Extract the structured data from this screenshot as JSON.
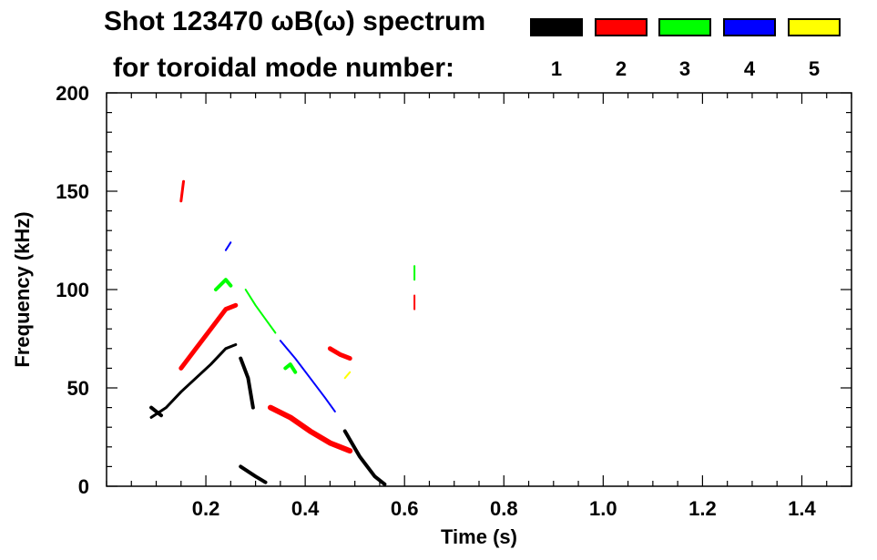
{
  "chart_data": {
    "type": "heatmap",
    "title": "Shot 123470 ωB(ω) spectrum",
    "subtitle": "for toroidal mode number:",
    "xlabel": "Time (s)",
    "ylabel": "Frequency (kHz)",
    "xlim": [
      0.0,
      1.5
    ],
    "ylim": [
      0,
      200
    ],
    "x_ticks": [
      0.2,
      0.4,
      0.6,
      0.8,
      1.0,
      1.2,
      1.4
    ],
    "x_tick_labels": [
      "0.2",
      "0.4",
      "0.6",
      "0.8",
      "1.0",
      "1.2",
      "1.4"
    ],
    "y_ticks": [
      0,
      50,
      100,
      150,
      200
    ],
    "y_tick_labels": [
      "0",
      "50",
      "100",
      "150",
      "200"
    ],
    "grid": false,
    "legend_position": "top",
    "legend": [
      {
        "label": "1",
        "color": "#000000"
      },
      {
        "label": "2",
        "color": "#ff0000"
      },
      {
        "label": "3",
        "color": "#00ff00"
      },
      {
        "label": "4",
        "color": "#0000ff"
      },
      {
        "label": "5",
        "color": "#ffff00"
      }
    ],
    "features": [
      {
        "mode": "1",
        "color": "#000000",
        "points": [
          [
            0.09,
            35
          ],
          [
            0.12,
            40
          ],
          [
            0.15,
            48
          ],
          [
            0.18,
            55
          ],
          [
            0.21,
            62
          ],
          [
            0.24,
            70
          ],
          [
            0.26,
            72
          ]
        ],
        "width": 3
      },
      {
        "mode": "1",
        "color": "#000000",
        "points": [
          [
            0.09,
            40
          ],
          [
            0.1,
            38
          ],
          [
            0.11,
            36
          ]
        ],
        "width": 4
      },
      {
        "mode": "1",
        "color": "#000000",
        "points": [
          [
            0.27,
            65
          ],
          [
            0.285,
            55
          ],
          [
            0.295,
            40
          ]
        ],
        "width": 4
      },
      {
        "mode": "1",
        "color": "#000000",
        "points": [
          [
            0.27,
            10
          ],
          [
            0.3,
            5
          ],
          [
            0.32,
            2
          ]
        ],
        "width": 4
      },
      {
        "mode": "1",
        "color": "#000000",
        "points": [
          [
            0.48,
            28
          ],
          [
            0.51,
            15
          ],
          [
            0.54,
            5
          ],
          [
            0.56,
            1
          ]
        ],
        "width": 4
      },
      {
        "mode": "2",
        "color": "#ff0000",
        "points": [
          [
            0.15,
            60
          ],
          [
            0.18,
            70
          ],
          [
            0.21,
            80
          ],
          [
            0.24,
            90
          ],
          [
            0.26,
            92
          ]
        ],
        "width": 5
      },
      {
        "mode": "2",
        "color": "#ff0000",
        "points": [
          [
            0.33,
            40
          ],
          [
            0.37,
            35
          ],
          [
            0.41,
            28
          ],
          [
            0.45,
            22
          ],
          [
            0.49,
            18
          ]
        ],
        "width": 6
      },
      {
        "mode": "2",
        "color": "#ff0000",
        "points": [
          [
            0.45,
            70
          ],
          [
            0.47,
            67
          ],
          [
            0.49,
            65
          ]
        ],
        "width": 5
      },
      {
        "mode": "2",
        "color": "#ff0000",
        "points": [
          [
            0.15,
            145
          ],
          [
            0.155,
            155
          ]
        ],
        "width": 3
      },
      {
        "mode": "2",
        "color": "#ff0000",
        "points": [
          [
            0.62,
            90
          ],
          [
            0.62,
            97
          ]
        ],
        "width": 2
      },
      {
        "mode": "3",
        "color": "#00ff00",
        "points": [
          [
            0.22,
            100
          ],
          [
            0.24,
            105
          ],
          [
            0.25,
            102
          ]
        ],
        "width": 4
      },
      {
        "mode": "3",
        "color": "#00ff00",
        "points": [
          [
            0.36,
            60
          ],
          [
            0.37,
            62
          ],
          [
            0.38,
            58
          ]
        ],
        "width": 4
      },
      {
        "mode": "3",
        "color": "#00ff00",
        "points": [
          [
            0.28,
            100
          ],
          [
            0.3,
            92
          ],
          [
            0.32,
            85
          ],
          [
            0.34,
            78
          ]
        ],
        "width": 2
      },
      {
        "mode": "3",
        "color": "#00ff00",
        "points": [
          [
            0.62,
            105
          ],
          [
            0.62,
            112
          ]
        ],
        "width": 2
      },
      {
        "mode": "4",
        "color": "#0000ff",
        "points": [
          [
            0.35,
            74
          ],
          [
            0.38,
            65
          ],
          [
            0.41,
            55
          ],
          [
            0.44,
            45
          ],
          [
            0.46,
            38
          ]
        ],
        "width": 2
      },
      {
        "mode": "4",
        "color": "#0000ff",
        "points": [
          [
            0.24,
            120
          ],
          [
            0.25,
            124
          ]
        ],
        "width": 2
      },
      {
        "mode": "5",
        "color": "#ffff00",
        "points": [
          [
            0.48,
            55
          ],
          [
            0.49,
            58
          ]
        ],
        "width": 2
      }
    ]
  }
}
